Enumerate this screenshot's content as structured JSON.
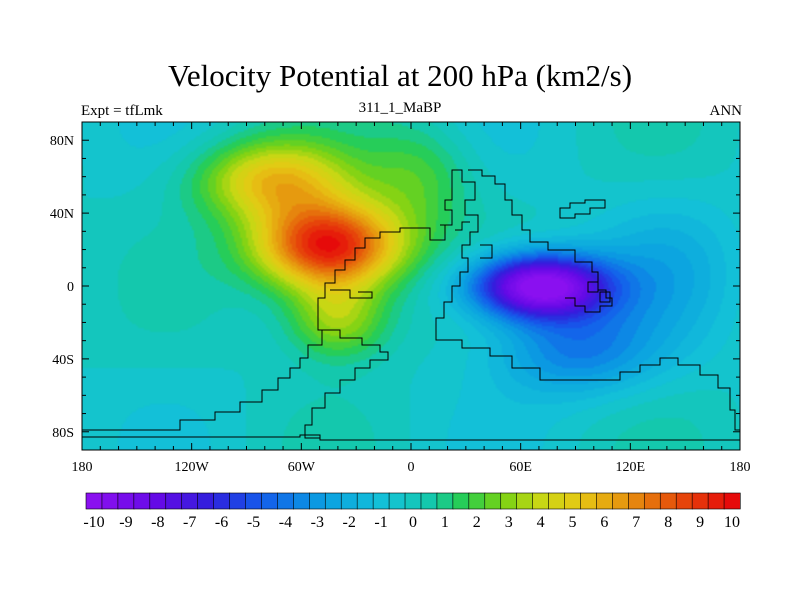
{
  "title": "Velocity Potential at 200 hPa (km2/s)",
  "left_label": "Expt = tfLmk",
  "center_label": "311_1_MaBP",
  "right_label": "ANN",
  "chart_data": {
    "type": "heatmap",
    "title": "Velocity Potential at 200 hPa (km2/s)",
    "subtitle": "311_1_MaBP",
    "x_axis": {
      "range": [
        -180,
        180
      ],
      "ticks": [
        -180,
        -120,
        -60,
        0,
        60,
        120,
        180
      ],
      "tick_labels": [
        "180",
        "120W",
        "60W",
        "0",
        "60E",
        "120E",
        "180"
      ]
    },
    "y_axis": {
      "range": [
        -90,
        90
      ],
      "ticks": [
        80,
        40,
        0,
        -40,
        -80
      ],
      "tick_labels": [
        "80N",
        "40N",
        "0",
        "40S",
        "80S"
      ]
    },
    "field_centers": [
      {
        "name": "maximum",
        "lon": -45,
        "lat": 22,
        "value": 10
      },
      {
        "name": "minimum",
        "lon": 70,
        "lat": 0,
        "value": -10
      }
    ],
    "colorbar": {
      "min": -10,
      "max": 10,
      "interval": 0.5,
      "labels": [
        "-10",
        "-9",
        "-8",
        "-7",
        "-6",
        "-5",
        "-4",
        "-3",
        "-2",
        "-1",
        "0",
        "1",
        "2",
        "3",
        "4",
        "5",
        "6",
        "7",
        "8",
        "9",
        "10"
      ]
    }
  },
  "colors": {
    "neg_extreme": "#8a10f0",
    "zero": "#10c8c0",
    "pos_extreme": "#e81010",
    "coast": "#000000"
  }
}
